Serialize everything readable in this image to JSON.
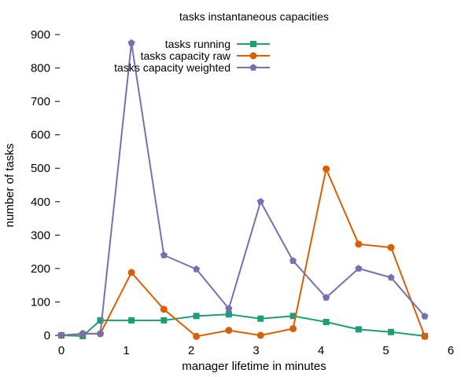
{
  "chart_data": {
    "type": "line",
    "title": "tasks instantaneous capacities",
    "xlabel": "manager lifetime in minutes",
    "ylabel": "number of tasks",
    "xlim": [
      0,
      6
    ],
    "ylim": [
      0,
      900
    ],
    "xticks": [
      "0",
      "1",
      "2",
      "3",
      "4",
      "5",
      "6"
    ],
    "yticks": [
      "0",
      "100",
      "200",
      "300",
      "400",
      "500",
      "600",
      "700",
      "800",
      "900"
    ],
    "grid": false,
    "legend_position": "top-center",
    "series": [
      {
        "name": "tasks running",
        "color": "#1a9e77",
        "marker": "square",
        "x": [
          0.0,
          0.33,
          0.6,
          1.08,
          1.58,
          2.08,
          2.58,
          3.07,
          3.57,
          4.08,
          4.58,
          5.08,
          5.6
        ],
        "y": [
          0,
          -2,
          45,
          45,
          45,
          58,
          63,
          50,
          58,
          40,
          18,
          10,
          -2
        ]
      },
      {
        "name": "tasks capacity raw",
        "color": "#d95f02",
        "marker": "circle",
        "x": [
          0.0,
          0.33,
          0.6,
          1.08,
          1.58,
          2.08,
          2.58,
          3.07,
          3.57,
          4.08,
          4.58,
          5.08,
          5.6
        ],
        "y": [
          0,
          5,
          5,
          188,
          78,
          -3,
          15,
          0,
          20,
          498,
          273,
          263,
          -3
        ]
      },
      {
        "name": "tasks capacity weighted",
        "color": "#7570b3",
        "marker": "pentagon",
        "x": [
          0.0,
          0.33,
          0.6,
          1.08,
          1.58,
          2.08,
          2.58,
          3.07,
          3.57,
          4.08,
          4.58,
          5.08,
          5.6
        ],
        "y": [
          0,
          5,
          5,
          875,
          240,
          198,
          80,
          400,
          223,
          113,
          200,
          173,
          57
        ]
      }
    ]
  }
}
